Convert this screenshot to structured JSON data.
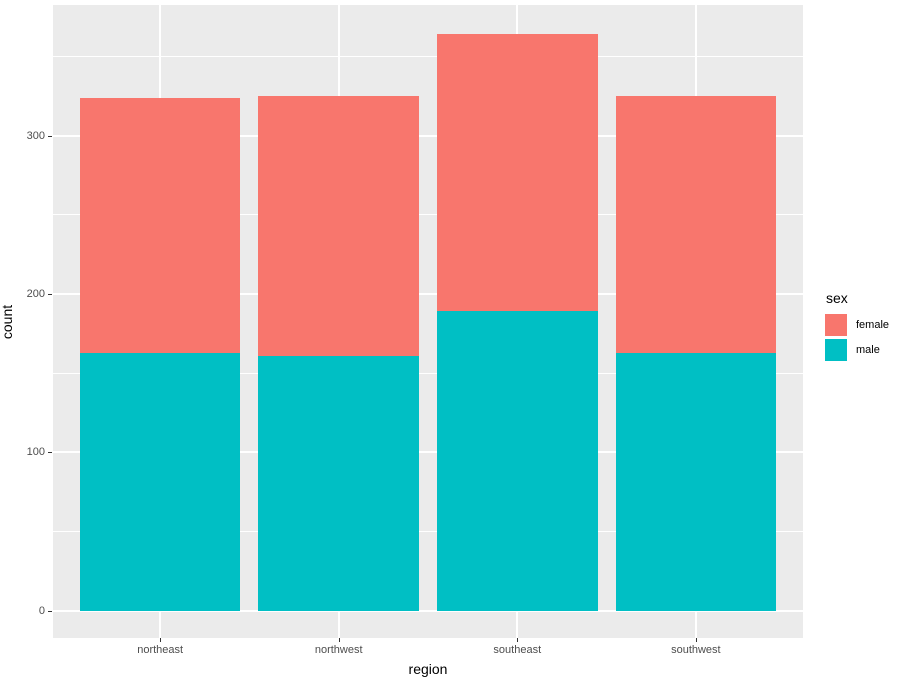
{
  "chart_data": {
    "type": "bar",
    "stacked": true,
    "title": "",
    "xlabel": "region",
    "ylabel": "count",
    "categories": [
      "northeast",
      "northwest",
      "southeast",
      "southwest"
    ],
    "series": [
      {
        "name": "male",
        "color": "#00BFC4",
        "values": [
          163,
          161,
          189,
          163
        ]
      },
      {
        "name": "female",
        "color": "#F8766D",
        "values": [
          161,
          164,
          175,
          162
        ]
      }
    ],
    "stack_totals": [
      324,
      325,
      364,
      325
    ],
    "y_ticks": [
      0,
      100,
      200,
      300
    ],
    "y_minor_ticks": [
      50,
      150,
      250,
      350
    ],
    "ylim": [
      -18,
      382
    ],
    "grid": "on",
    "panel_background": "#EBEBEB",
    "gridline_color": "#FFFFFF",
    "tick_label_color": "#4D4D4D",
    "legend": {
      "title": "sex",
      "position": "right",
      "entries": [
        {
          "label": "female",
          "color": "#F8766D"
        },
        {
          "label": "male",
          "color": "#00BFC4"
        }
      ]
    }
  }
}
